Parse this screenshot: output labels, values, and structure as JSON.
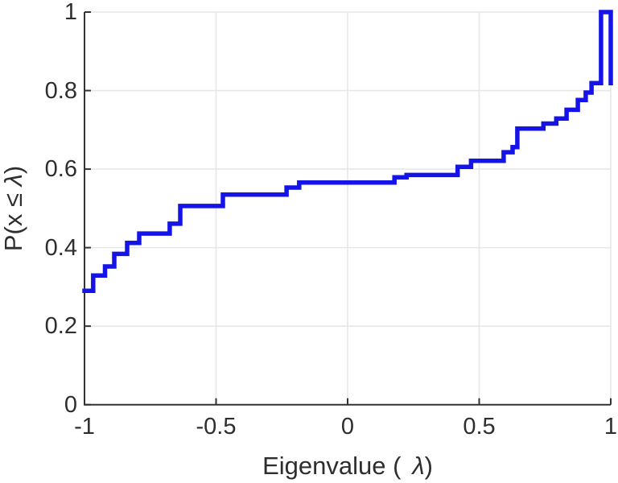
{
  "chart_data": {
    "type": "line",
    "style": "stairs-ecdf",
    "title": "",
    "xlabel": "Eigenvalue ( λ)",
    "ylabel": "P(x ≤ λ)",
    "xlim": [
      -1,
      1
    ],
    "ylim": [
      0,
      1
    ],
    "xticks": [
      -1,
      -0.5,
      0,
      0.5,
      1
    ],
    "xtick_labels": [
      "-1",
      "-0.5",
      "0",
      "0.5",
      "1"
    ],
    "yticks": [
      0,
      0.2,
      0.4,
      0.6,
      0.8,
      1
    ],
    "ytick_labels": [
      "0",
      "0.2",
      "0.4",
      "0.6",
      "0.8",
      "1"
    ],
    "grid": true,
    "legend": null,
    "line_color": "#1414e8",
    "line_width": 5.5,
    "start": {
      "x": -1.0,
      "y": 0.29
    },
    "steps": [
      {
        "x": -0.967,
        "y": 0.329
      },
      {
        "x": -0.922,
        "y": 0.352
      },
      {
        "x": -0.887,
        "y": 0.384
      },
      {
        "x": -0.838,
        "y": 0.412
      },
      {
        "x": -0.792,
        "y": 0.436
      },
      {
        "x": -0.676,
        "y": 0.461
      },
      {
        "x": -0.636,
        "y": 0.506
      },
      {
        "x": -0.474,
        "y": 0.535
      },
      {
        "x": -0.232,
        "y": 0.553
      },
      {
        "x": -0.184,
        "y": 0.566
      },
      {
        "x": 0.178,
        "y": 0.579
      },
      {
        "x": 0.224,
        "y": 0.585
      },
      {
        "x": 0.418,
        "y": 0.606
      },
      {
        "x": 0.469,
        "y": 0.621
      },
      {
        "x": 0.593,
        "y": 0.643
      },
      {
        "x": 0.627,
        "y": 0.656
      },
      {
        "x": 0.645,
        "y": 0.703
      },
      {
        "x": 0.744,
        "y": 0.716
      },
      {
        "x": 0.793,
        "y": 0.729
      },
      {
        "x": 0.832,
        "y": 0.751
      },
      {
        "x": 0.875,
        "y": 0.776
      },
      {
        "x": 0.905,
        "y": 0.795
      },
      {
        "x": 0.927,
        "y": 0.819
      },
      {
        "x": 0.963,
        "y": 1.0
      }
    ],
    "end_x": 1.0,
    "closing_drop_y": 0.819
  },
  "labels": {
    "xlabel_prefix": "Eigenvalue (",
    "xlabel_lambda": "λ",
    "xlabel_suffix": ")",
    "ylabel_prefix": "P(x ≤ ",
    "ylabel_lambda": "λ",
    "ylabel_suffix": ")"
  },
  "colors": {
    "curve": "#1414e8",
    "grid": "#e7e7e7",
    "axis": "#333333",
    "text": "#2e2e2e",
    "background": "#ffffff"
  }
}
